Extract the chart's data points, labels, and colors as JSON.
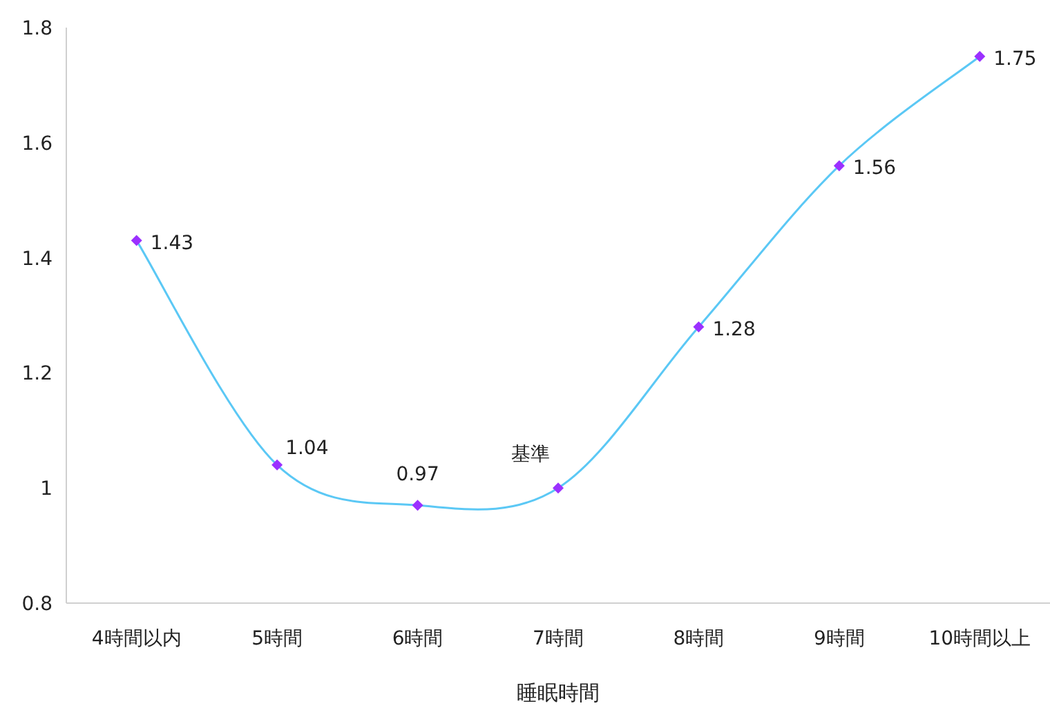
{
  "chart_data": {
    "type": "line",
    "xlabel": "睡眠時間",
    "categories": [
      "4時間以内",
      "5時間",
      "6時間",
      "7時間",
      "8時間",
      "9時間",
      "10時間以上"
    ],
    "series": [
      {
        "color": "#5bc8f5",
        "colors": [
          "#9b30ff",
          "#9b30ff",
          "#9b30ff",
          "#9b30ff",
          "#9b30ff",
          "#9b30ff",
          "#9b30ff"
        ],
        "values": [
          1.43,
          1.04,
          0.97,
          1.0,
          1.28,
          1.56,
          1.75
        ],
        "value_labels": [
          "1.43",
          "1.04",
          "0.97",
          "基準",
          "1.28",
          "1.56",
          "1.75"
        ]
      }
    ],
    "ylim": [
      0.8,
      1.8
    ],
    "yticks": [
      0.8,
      1,
      1.2,
      1.4,
      1.6,
      1.8
    ],
    "grid": false,
    "marker": "diamond",
    "line_style": "solid"
  }
}
